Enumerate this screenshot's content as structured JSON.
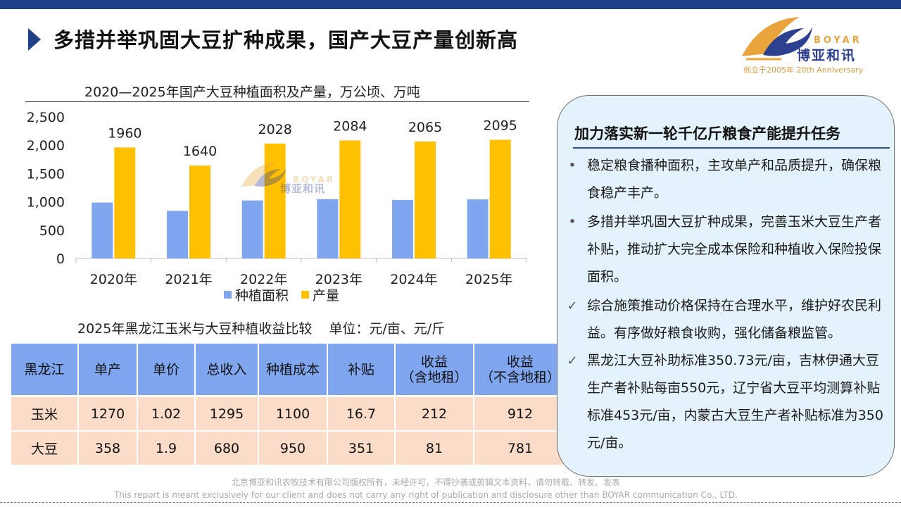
{
  "header": {
    "title": "多措并举巩固大豆扩种成果，国产大豆产量创新高",
    "logo": {
      "en": "BOYAR",
      "cn": "博亚和讯",
      "tagline": "创立于2005年 20th Anniversary"
    }
  },
  "chart_data": {
    "type": "bar",
    "title": "2020—2025年国产大豆种植面积及产量，万公顷、万吨",
    "categories": [
      "2020年",
      "2021年",
      "2022年",
      "2023年",
      "2024年",
      "2025年"
    ],
    "series": [
      {
        "name": "种植面积",
        "color": "#7fa6ef",
        "values": [
          987,
          840,
          1024,
          1047,
          1033,
          1043
        ]
      },
      {
        "name": "产量",
        "color": "#ffc000",
        "values": [
          1960,
          1640,
          2028,
          2084,
          2065,
          2095
        ],
        "data_labels": [
          "1960",
          "1640",
          "2028",
          "2084",
          "2065",
          "2095"
        ]
      }
    ],
    "y_ticks": [
      "0",
      "500",
      "1,000",
      "1,500",
      "2,000",
      "2,500"
    ],
    "ylim": [
      0,
      2500
    ],
    "legend": "bottom"
  },
  "table": {
    "title": "2025年黑龙江玉米与大豆种植收益比较",
    "unit": "单位：元/亩、元/斤",
    "headers": [
      "黑龙江",
      "单产",
      "单价",
      "总收入",
      "种植成本",
      "补贴",
      "收益\n（含地租）",
      "收益\n（不含地租）"
    ],
    "rows": [
      [
        "玉米",
        "1270",
        "1.02",
        "1295",
        "1100",
        "16.7",
        "212",
        "912"
      ],
      [
        "大豆",
        "358",
        "1.9",
        "680",
        "950",
        "351",
        "81",
        "781"
      ]
    ]
  },
  "panel": {
    "title": "加力落实新一轮千亿斤粮食产能提升任务",
    "bullets": [
      {
        "marker": "•",
        "text": "稳定粮食播种面积，主攻单产和品质提升，确保粮食稳产丰产。"
      },
      {
        "marker": "•",
        "text": "多措并举巩固大豆扩种成果，完善玉米大豆生产者补贴，推动扩大完全成本保险和种植收入保险投保面积。"
      },
      {
        "marker": "✓",
        "text": "综合施策推动价格保持在合理水平，维护好农民利益。有序做好粮食收购，强化储备粮监管。"
      },
      {
        "marker": "✓",
        "text": "黑龙江大豆补助标准350.73元/亩，吉林伊通大豆生产者补贴每亩550元，辽宁省大豆平均测算补贴标准453元/亩，内蒙古大豆生产者补贴标准为350元/亩。"
      }
    ]
  },
  "footer": {
    "cn": "北京博亚和讯农牧技术有限公司版权所有，未经许可，不得抄袭或剪辑文本资料，请勿转载、转发、发表",
    "en": "This report is meant exclusively for our client and does not carry any right of publication and disclosure other than BOYAR communication Co., LTD."
  }
}
